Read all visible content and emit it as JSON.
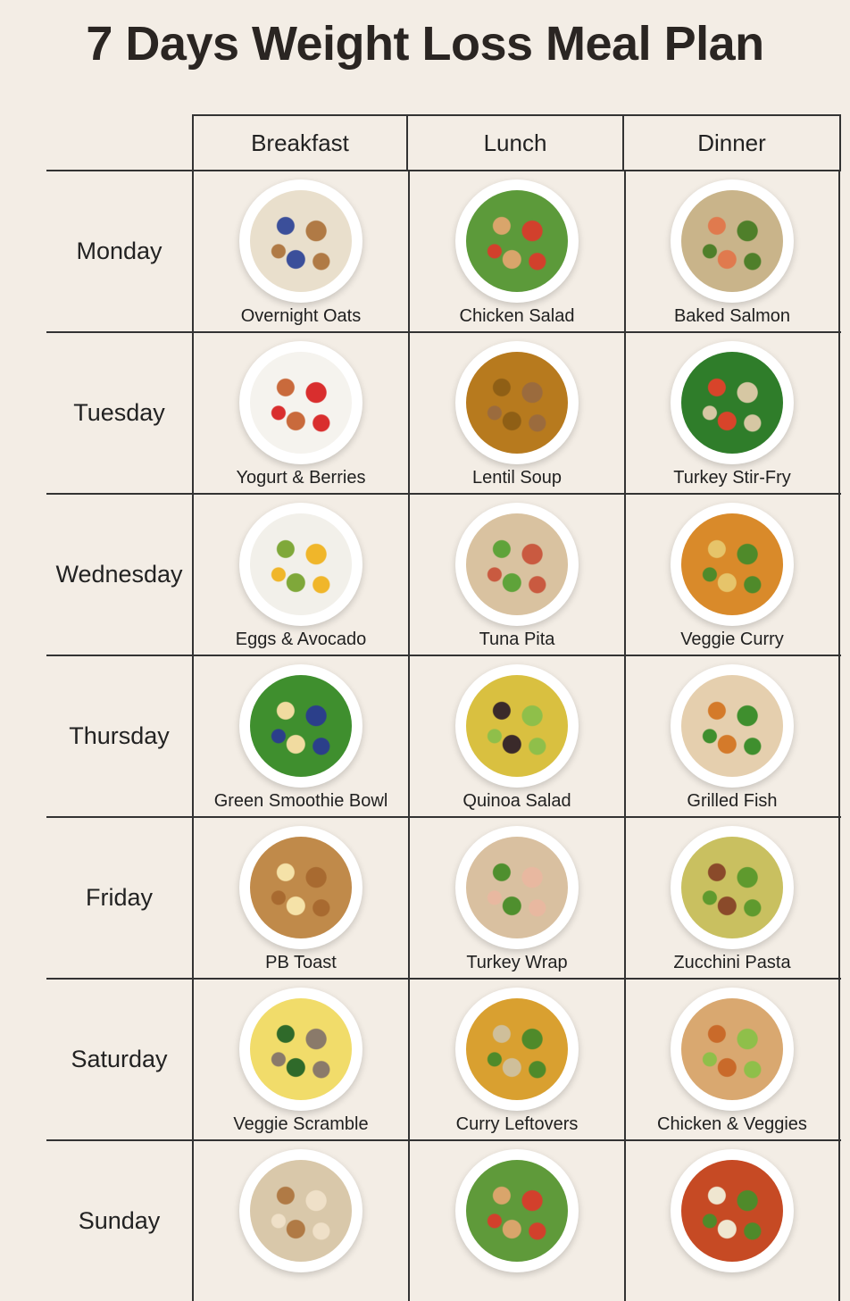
{
  "title": "7 Days Weight Loss Meal Plan",
  "headers": [
    "Breakfast",
    "Lunch",
    "Dinner"
  ],
  "days": [
    {
      "day": "Monday",
      "meals": [
        {
          "name": "Overnight Oats",
          "colors": [
            "#e9dfcc",
            "#3b4f9a",
            "#b07a45"
          ]
        },
        {
          "name": "Chicken Salad",
          "colors": [
            "#5c9a3a",
            "#d9a56b",
            "#d2402c"
          ]
        },
        {
          "name": "Baked Salmon",
          "colors": [
            "#c9b48a",
            "#e07a4e",
            "#4f7f2a"
          ]
        }
      ]
    },
    {
      "day": "Tuesday",
      "meals": [
        {
          "name": "Yogurt & Berries",
          "colors": [
            "#f5f3ee",
            "#c96a3c",
            "#d92e2e"
          ]
        },
        {
          "name": "Lentil Soup",
          "colors": [
            "#b77a1e",
            "#8f5f15",
            "#9b6b3d"
          ]
        },
        {
          "name": "Turkey Stir-Fry",
          "colors": [
            "#2f7d2a",
            "#d8442a",
            "#d6c7a3"
          ]
        }
      ]
    },
    {
      "day": "Wednesday",
      "meals": [
        {
          "name": "Eggs & Avocado",
          "colors": [
            "#f2f0ea",
            "#7fa83a",
            "#f0b62a"
          ]
        },
        {
          "name": "Tuna Pita",
          "colors": [
            "#d9c2a0",
            "#5fa33a",
            "#c95a40"
          ]
        },
        {
          "name": "Veggie Curry",
          "colors": [
            "#d98a2a",
            "#e6c46a",
            "#4f8a2a"
          ]
        }
      ]
    },
    {
      "day": "Thursday",
      "meals": [
        {
          "name": "Green Smoothie Bowl",
          "colors": [
            "#3f8f2e",
            "#f1dba0",
            "#2b3f8a"
          ]
        },
        {
          "name": "Quinoa Salad",
          "colors": [
            "#d9c040",
            "#3a2a2a",
            "#8fbf4a"
          ]
        },
        {
          "name": "Grilled Fish",
          "colors": [
            "#e5cfae",
            "#d47a2a",
            "#3f8f2e"
          ]
        }
      ]
    },
    {
      "day": "Friday",
      "meals": [
        {
          "name": "PB Toast",
          "colors": [
            "#c08a4a",
            "#f5e2a8",
            "#a86a30"
          ]
        },
        {
          "name": "Turkey Wrap",
          "colors": [
            "#d9c0a0",
            "#4f8f2e",
            "#e8b8a0"
          ]
        },
        {
          "name": "Zucchini Pasta",
          "colors": [
            "#c9c060",
            "#8a4a2a",
            "#5f9a2e"
          ]
        }
      ]
    },
    {
      "day": "Saturday",
      "meals": [
        {
          "name": "Veggie Scramble",
          "colors": [
            "#f1dc6a",
            "#2f6a2a",
            "#8a7a6a"
          ]
        },
        {
          "name": "Curry Leftovers",
          "colors": [
            "#d9a030",
            "#cfbf9a",
            "#4f8a2a"
          ]
        },
        {
          "name": "Chicken & Veggies",
          "colors": [
            "#d9a870",
            "#c96a2a",
            "#8fbf4a"
          ]
        }
      ]
    },
    {
      "day": "Sunday",
      "meals": [
        {
          "name": "",
          "colors": [
            "#d9c8aa",
            "#b07a45",
            "#efe0c8"
          ]
        },
        {
          "name": "",
          "colors": [
            "#5f9a3a",
            "#d9a56b",
            "#d2402c"
          ]
        },
        {
          "name": "",
          "colors": [
            "#c64a24",
            "#efe6d0",
            "#4f8a2a"
          ]
        }
      ]
    }
  ]
}
